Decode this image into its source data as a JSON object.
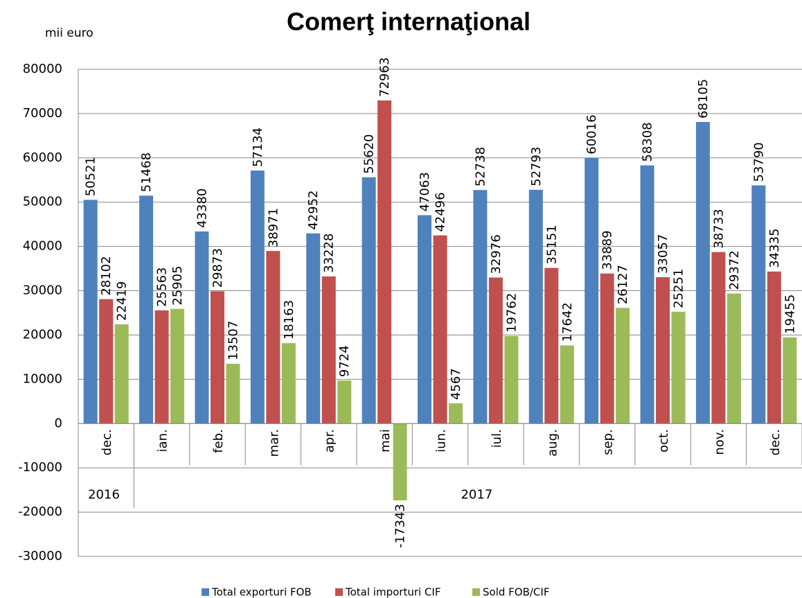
{
  "chart_data": {
    "type": "bar",
    "title": "Comerţ internaţional",
    "unit_label": "mii euro",
    "categories": [
      "dec.",
      "ian.",
      "feb.",
      "mar.",
      "apr.",
      "mai",
      "iun.",
      "iul.",
      "aug.",
      "sep.",
      "oct.",
      "nov.",
      "dec."
    ],
    "groups": [
      {
        "label": "2016",
        "count": 1
      },
      {
        "label": "2017",
        "count": 12
      }
    ],
    "series": [
      {
        "name": "Total exporturi FOB",
        "color": "#4f81bd",
        "values": [
          50521,
          51468,
          43380,
          57134,
          42952,
          55620,
          47063,
          52738,
          52793,
          60016,
          58308,
          68105,
          53790
        ]
      },
      {
        "name": "Total importuri CIF",
        "color": "#c0504d",
        "values": [
          28102,
          25563,
          29873,
          38971,
          33228,
          72963,
          42496,
          32976,
          35151,
          33889,
          33057,
          38733,
          34335
        ]
      },
      {
        "name": "Sold FOB/CIF",
        "color": "#9bbb59",
        "values": [
          22419,
          25905,
          13507,
          18163,
          9724,
          -17343,
          4567,
          19762,
          17642,
          26127,
          25251,
          29372,
          19455
        ]
      }
    ],
    "ylim": [
      -30000,
      80000
    ],
    "yticks": [
      -30000,
      -20000,
      -10000,
      0,
      10000,
      20000,
      30000,
      40000,
      50000,
      60000,
      70000,
      80000
    ],
    "grid": true,
    "legend": "bottom"
  }
}
